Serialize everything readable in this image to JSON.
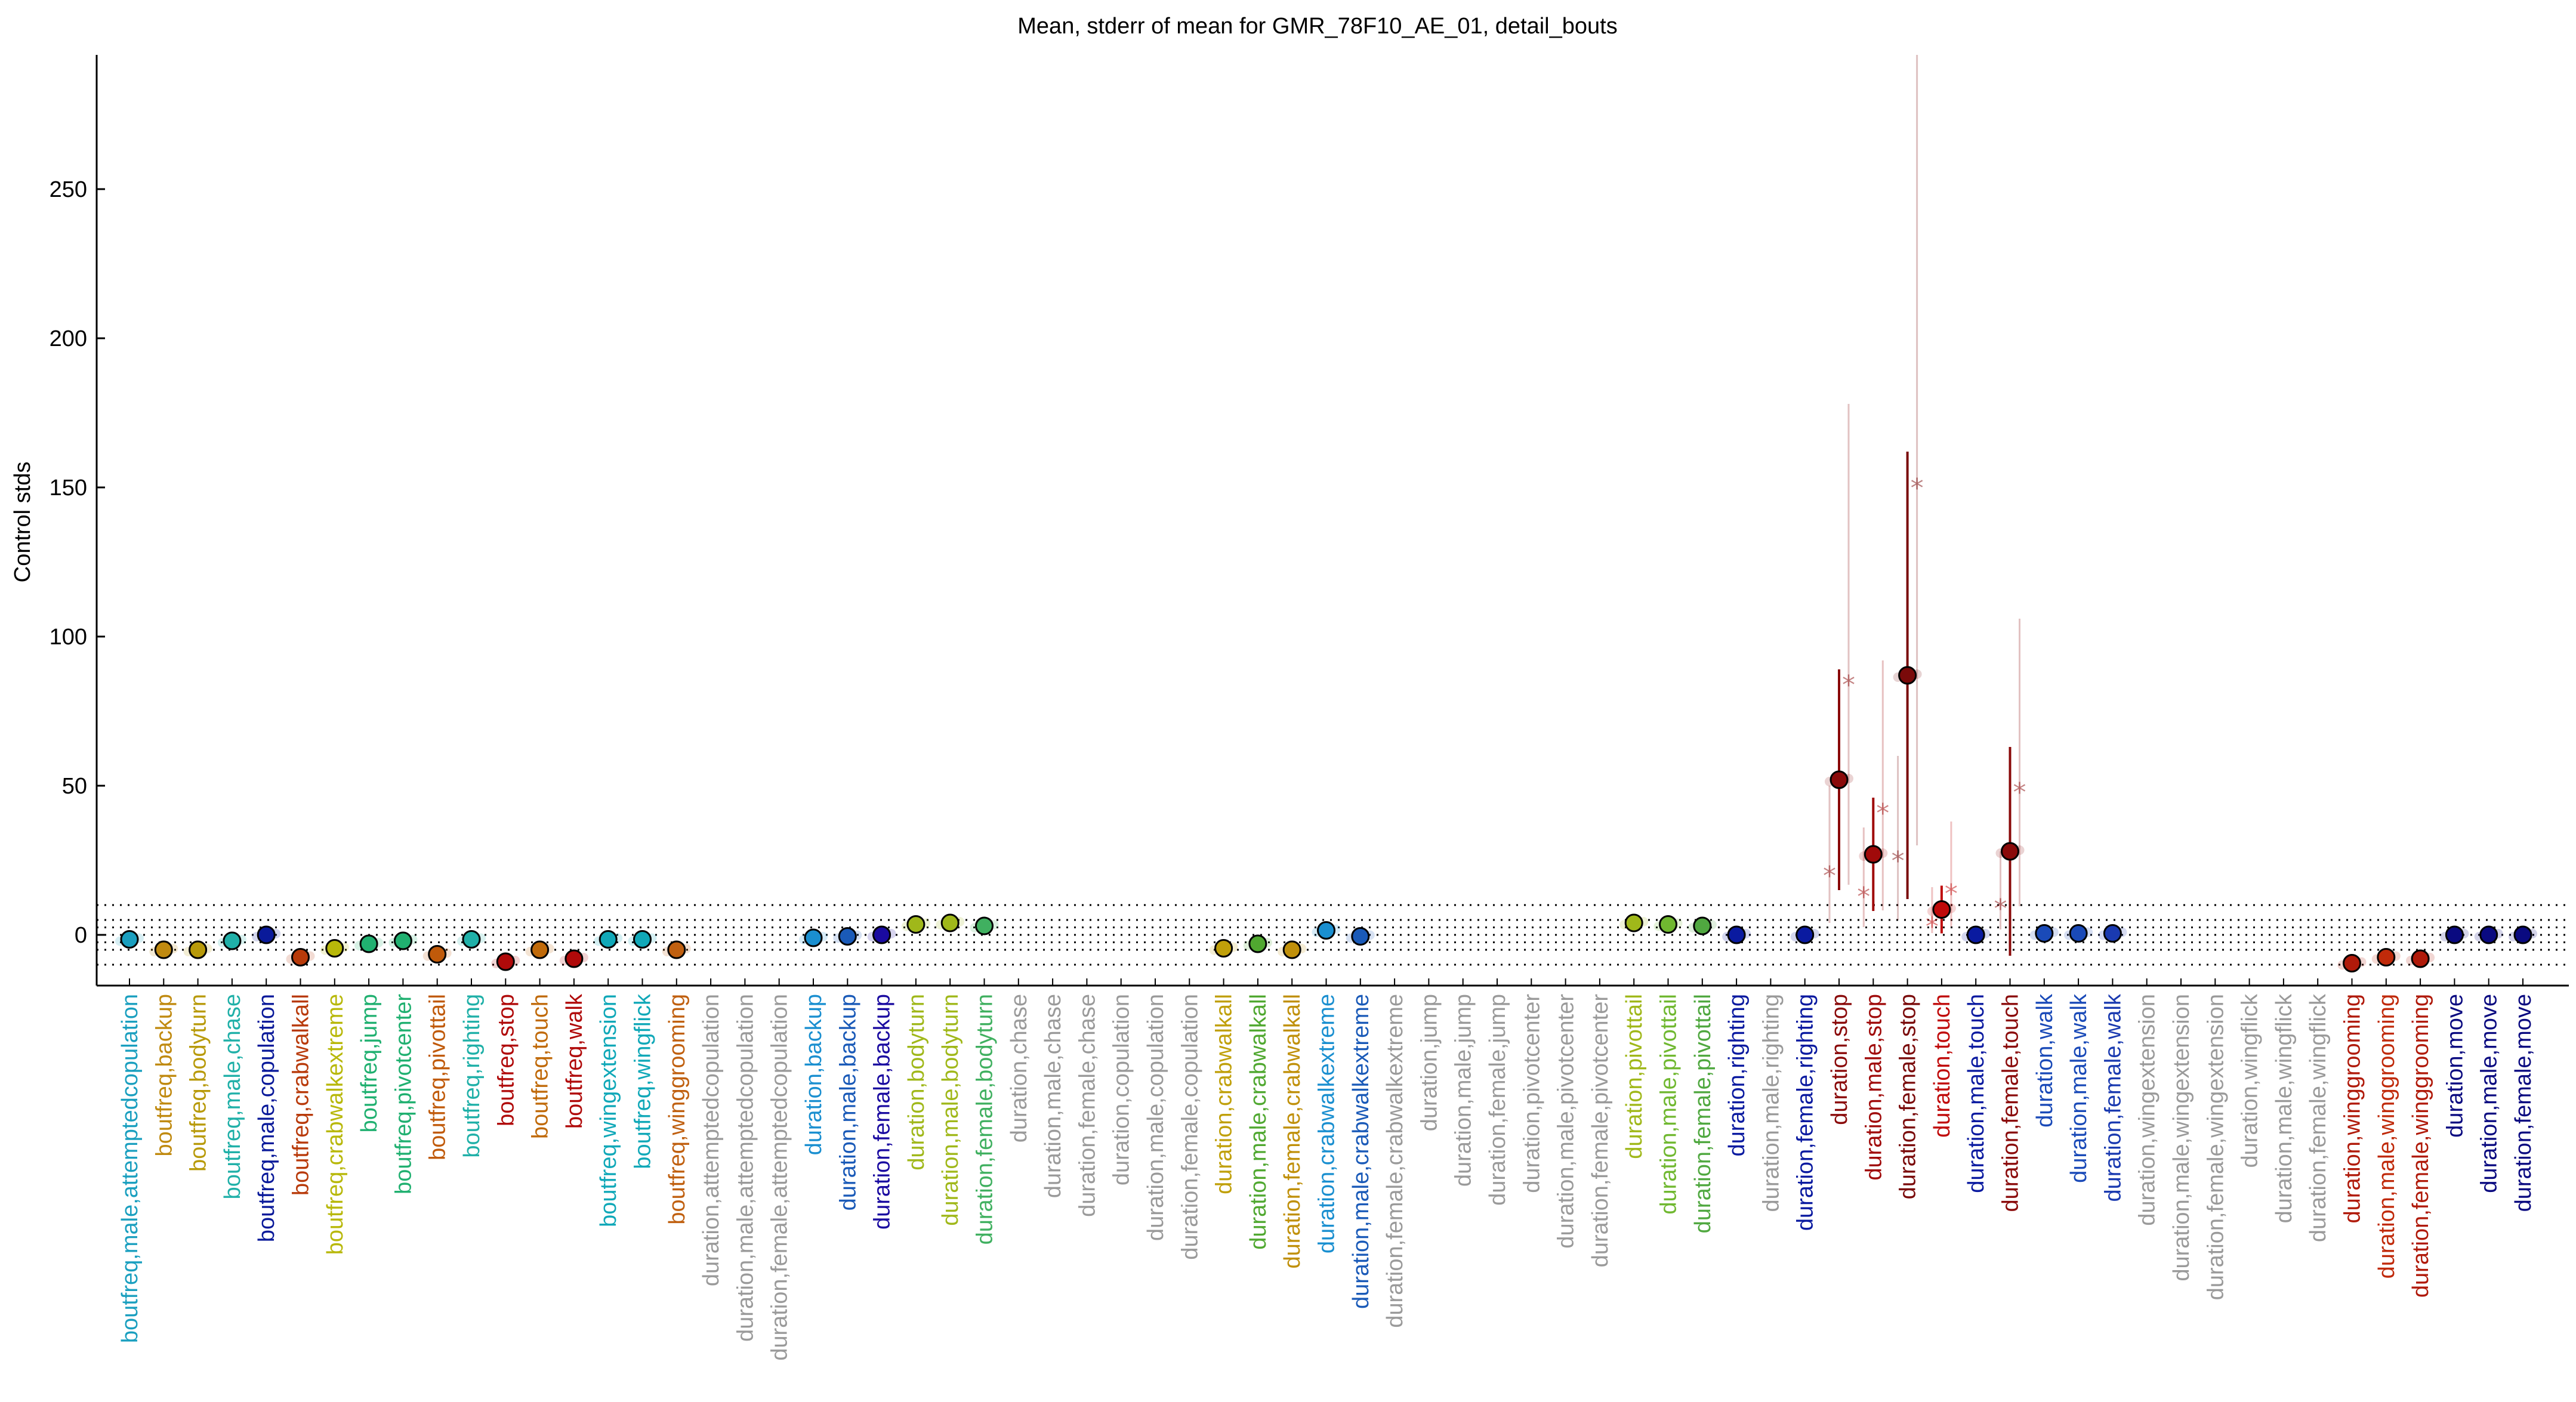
{
  "chart_data": {
    "type": "scatter",
    "title": "Mean, stderr of mean for GMR_78F10_AE_01, detail_bouts",
    "ylabel": "Control stds",
    "xlabel": "",
    "ylim": [
      -17,
      295
    ],
    "yticks": [
      0,
      50,
      100,
      150,
      200,
      250
    ],
    "reference_lines": [
      -10,
      -5,
      -2.5,
      0,
      2.5,
      5,
      10
    ],
    "grid": false,
    "categories": [
      "boutfreq,male,attemptedcopulation",
      "boutfreq,backup",
      "boutfreq,bodyturn",
      "boutfreq,male,chase",
      "boutfreq,male,copulation",
      "boutfreq,crabwalkall",
      "boutfreq,crabwalkextreme",
      "boutfreq,jump",
      "boutfreq,pivotcenter",
      "boutfreq,pivottail",
      "boutfreq,righting",
      "boutfreq,stop",
      "boutfreq,touch",
      "boutfreq,walk",
      "boutfreq,wingextension",
      "boutfreq,wingflick",
      "boutfreq,winggrooming",
      "duration,attemptedcopulation",
      "duration,male,attemptedcopulation",
      "duration,female,attemptedcopulation",
      "duration,backup",
      "duration,male,backup",
      "duration,female,backup",
      "duration,bodyturn",
      "duration,male,bodyturn",
      "duration,female,bodyturn",
      "duration,chase",
      "duration,male,chase",
      "duration,female,chase",
      "duration,copulation",
      "duration,male,copulation",
      "duration,female,copulation",
      "duration,crabwalkall",
      "duration,male,crabwalkall",
      "duration,female,crabwalkall",
      "duration,crabwalkextreme",
      "duration,male,crabwalkextreme",
      "duration,female,crabwalkextreme",
      "duration,jump",
      "duration,male,jump",
      "duration,female,jump",
      "duration,pivotcenter",
      "duration,male,pivotcenter",
      "duration,female,pivotcenter",
      "duration,pivottail",
      "duration,male,pivottail",
      "duration,female,pivottail",
      "duration,righting",
      "duration,male,righting",
      "duration,female,righting",
      "duration,stop",
      "duration,male,stop",
      "duration,female,stop",
      "duration,touch",
      "duration,male,touch",
      "duration,female,touch",
      "duration,walk",
      "duration,male,walk",
      "duration,female,walk",
      "duration,wingextension",
      "duration,male,wingextension",
      "duration,female,wingextension",
      "duration,wingflick",
      "duration,male,wingflick",
      "duration,female,wingflick",
      "duration,winggrooming",
      "duration,male,winggrooming",
      "duration,female,winggrooming",
      "duration,move",
      "duration,male,move",
      "duration,female,move"
    ],
    "label_colors": [
      "#1a9fbf",
      "#c08a10",
      "#b89a0a",
      "#20b0a8",
      "#0a1a9a",
      "#b83a0a",
      "#b8b80a",
      "#20b070",
      "#20b070",
      "#c05a0a",
      "#20b0a8",
      "#b00a0a",
      "#c06a0a",
      "#b00a0a",
      "#10a8b8",
      "#10a8b8",
      "#c06010",
      "#9a9a9a",
      "#9a9a9a",
      "#9a9a9a",
      "#1a8fd0",
      "#1a5ab8",
      "#1a0aa0",
      "#a0b81a",
      "#a0b81a",
      "#40b060",
      "#9a9a9a",
      "#9a9a9a",
      "#9a9a9a",
      "#9a9a9a",
      "#9a9a9a",
      "#9a9a9a",
      "#c0a00a",
      "#50a830",
      "#c0900a",
      "#1a8fd0",
      "#1a5ab8",
      "#9a9a9a",
      "#9a9a9a",
      "#9a9a9a",
      "#9a9a9a",
      "#9a9a9a",
      "#9a9a9a",
      "#9a9a9a",
      "#a0b81a",
      "#70b830",
      "#50a840",
      "#0a1aa0",
      "#9a9a9a",
      "#0a1aa0",
      "#8a0a0a",
      "#a00a0a",
      "#7a0a0a",
      "#c00a0a",
      "#0a1aa0",
      "#8a0a0a",
      "#1a4ab8",
      "#1a4ab8",
      "#1a3ab0",
      "#9a9a9a",
      "#9a9a9a",
      "#9a9a9a",
      "#9a9a9a",
      "#9a9a9a",
      "#9a9a9a",
      "#b01a0a",
      "#c02a0a",
      "#b01a0a",
      "#0a0a80",
      "#0a0a80",
      "#0a0a80"
    ],
    "series": [
      {
        "values": [
          -1.5,
          -5,
          -5,
          -2,
          0,
          -7.5,
          -4.5,
          -3,
          -2,
          -6.5,
          -1.5,
          -9,
          -5,
          -8,
          -1.5,
          -1.5,
          -5,
          null,
          null,
          null,
          -1,
          -0.5,
          0,
          3.5,
          4,
          3,
          null,
          null,
          null,
          null,
          null,
          null,
          -4.5,
          -3,
          -5,
          1.5,
          -0.5,
          null,
          null,
          null,
          null,
          null,
          null,
          null,
          4,
          3.5,
          3,
          0,
          null,
          0,
          52,
          27,
          87,
          8.5,
          0,
          28,
          0.5,
          0.5,
          0.5,
          null,
          null,
          null,
          null,
          null,
          null,
          -9.5,
          -7.5,
          -8,
          0,
          0,
          0
        ],
        "stderr": [
          0.5,
          0.5,
          0.5,
          0.5,
          0.5,
          0.5,
          0.5,
          0.5,
          0.5,
          0.5,
          0.5,
          0.5,
          0.5,
          0.5,
          0.5,
          0.5,
          0.5,
          null,
          null,
          null,
          0.5,
          0.5,
          0.5,
          0.5,
          0.5,
          0.5,
          null,
          null,
          null,
          null,
          null,
          null,
          0.5,
          0.5,
          0.5,
          0.5,
          0.5,
          null,
          null,
          null,
          null,
          null,
          null,
          null,
          0.5,
          0.5,
          0.5,
          0.5,
          null,
          0.5,
          37,
          19,
          75,
          8,
          1,
          35,
          0.5,
          0.5,
          0.5,
          null,
          null,
          null,
          null,
          null,
          null,
          1,
          1,
          1,
          0.5,
          0.5,
          0.5
        ],
        "marker_colors": [
          "#1a9fbf",
          "#c08a10",
          "#b89a0a",
          "#20b0a8",
          "#0a1a9a",
          "#b83a0a",
          "#b8b80a",
          "#20b070",
          "#20b070",
          "#c05a0a",
          "#20b0a8",
          "#b00a0a",
          "#c06a0a",
          "#b00a0a",
          "#10a8b8",
          "#10a8b8",
          "#c06010",
          null,
          null,
          null,
          "#1a8fd0",
          "#1a5ab8",
          "#1a0aa0",
          "#a0b81a",
          "#a0b81a",
          "#40b060",
          null,
          null,
          null,
          null,
          null,
          null,
          "#c0a00a",
          "#50a830",
          "#c0900a",
          "#1a8fd0",
          "#1a5ab8",
          null,
          null,
          null,
          null,
          null,
          null,
          null,
          "#a0b81a",
          "#70b830",
          "#50a840",
          "#0a1aa0",
          null,
          "#0a1aa0",
          "#8a0a0a",
          "#a00a0a",
          "#7a0a0a",
          "#c00a0a",
          "#0a1aa0",
          "#8a0a0a",
          "#1a4ab8",
          "#1a4ab8",
          "#1a3ab0",
          null,
          null,
          null,
          null,
          null,
          null,
          "#b01a0a",
          "#c02a0a",
          "#b01a0a",
          "#0a0a80",
          "#0a0a80",
          "#0a0a80"
        ]
      }
    ],
    "individual_points": [
      {
        "index": 50,
        "values": [
          20,
          84
        ]
      },
      {
        "index": 51,
        "values": [
          13,
          41
        ]
      },
      {
        "index": 52,
        "values": [
          25,
          150
        ]
      },
      {
        "index": 53,
        "values": [
          3,
          14
        ]
      },
      {
        "index": 55,
        "values": [
          9,
          48
        ]
      }
    ]
  }
}
